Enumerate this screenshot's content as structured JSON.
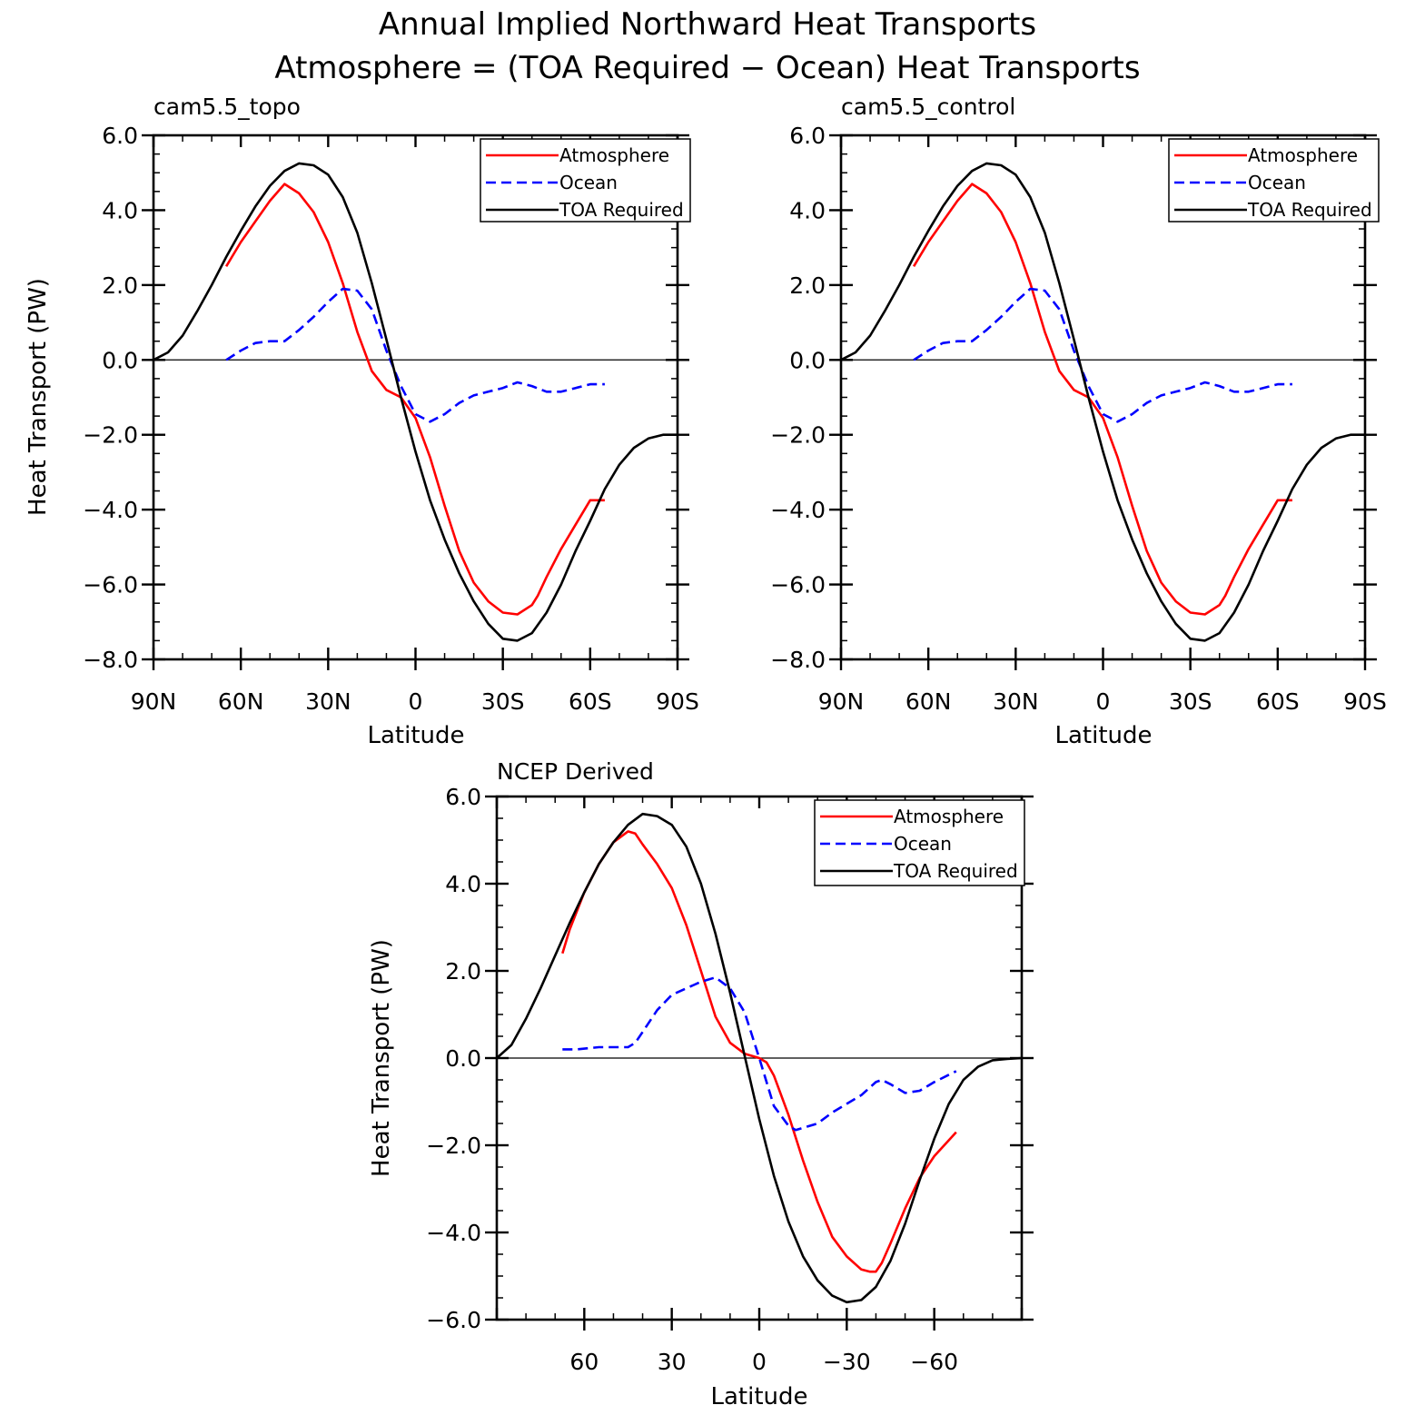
{
  "figure": {
    "title_line1": "Annual Implied Northward Heat Transports",
    "title_line2": "Atmosphere = (TOA Required − Ocean) Heat Transports"
  },
  "colors": {
    "atmosphere": "#ff0000",
    "ocean": "#0000ff",
    "toa": "#000000"
  },
  "chart_data": [
    {
      "type": "line",
      "panel_label": "cam5.5_topo",
      "xlabel": "Latitude",
      "ylabel": "Heat Transport (PW)",
      "xlim": [
        90,
        -90
      ],
      "ylim": [
        -8,
        6
      ],
      "x_ticks": [
        90,
        60,
        30,
        0,
        -30,
        -60,
        -90
      ],
      "x_tick_labels": [
        "90N",
        "60N",
        "30N",
        "0",
        "30S",
        "60S",
        "90S"
      ],
      "y_ticks": [
        -8,
        -6,
        -4,
        -2,
        0,
        2,
        4,
        6
      ],
      "y_tick_labels": [
        "−8.0",
        "−6.0",
        "−4.0",
        "−2.0",
        "0.0",
        "2.0",
        "4.0",
        "6.0"
      ],
      "legend": {
        "placement": "top-right",
        "entries": [
          "Atmosphere",
          "Ocean",
          "TOA Required"
        ]
      },
      "zero_line": true,
      "grid": false,
      "series": [
        {
          "name": "Atmosphere",
          "color": "#ff0000",
          "dash": "solid",
          "x": [
            65,
            60,
            55,
            50,
            45,
            40,
            35,
            30,
            25,
            20,
            15,
            10,
            5,
            0,
            -5,
            -10,
            -15,
            -20,
            -25,
            -30,
            -35,
            -40,
            -42,
            -45,
            -50,
            -55,
            -60,
            -65
          ],
          "y": [
            2.5,
            3.15,
            3.7,
            4.25,
            4.7,
            4.45,
            3.95,
            3.15,
            2.05,
            0.75,
            -0.3,
            -0.8,
            -1.0,
            -1.55,
            -2.6,
            -3.9,
            -5.1,
            -5.95,
            -6.45,
            -6.75,
            -6.8,
            -6.55,
            -6.3,
            -5.8,
            -5.05,
            -4.4,
            -3.75,
            -3.75
          ]
        },
        {
          "name": "Ocean",
          "color": "#0000ff",
          "dash": "dashed",
          "x": [
            65,
            60,
            55,
            50,
            45,
            40,
            35,
            30,
            25,
            20,
            15,
            10,
            5,
            0,
            -5,
            -10,
            -15,
            -20,
            -25,
            -30,
            -35,
            -40,
            -45,
            -50,
            -55,
            -60,
            -65
          ],
          "y": [
            0.0,
            0.25,
            0.45,
            0.5,
            0.5,
            0.8,
            1.15,
            1.55,
            1.9,
            1.85,
            1.35,
            0.25,
            -0.7,
            -1.45,
            -1.65,
            -1.45,
            -1.15,
            -0.95,
            -0.85,
            -0.75,
            -0.6,
            -0.7,
            -0.85,
            -0.85,
            -0.75,
            -0.65,
            -0.65
          ]
        },
        {
          "name": "TOA Required",
          "color": "#000000",
          "dash": "solid",
          "x": [
            90,
            85,
            80,
            75,
            70,
            65,
            60,
            55,
            50,
            45,
            40,
            35,
            30,
            25,
            20,
            15,
            10,
            5,
            0,
            -5,
            -10,
            -15,
            -20,
            -25,
            -30,
            -35,
            -40,
            -45,
            -50,
            -55,
            -60,
            -65,
            -70,
            -75,
            -80,
            -85,
            -90
          ],
          "y": [
            0.0,
            0.2,
            0.65,
            1.3,
            2.0,
            2.75,
            3.45,
            4.1,
            4.65,
            5.05,
            5.25,
            5.2,
            4.95,
            4.35,
            3.4,
            2.05,
            0.55,
            -1.0,
            -2.45,
            -3.75,
            -4.8,
            -5.7,
            -6.45,
            -7.05,
            -7.45,
            -7.5,
            -7.3,
            -6.75,
            -6.0,
            -5.1,
            -4.3,
            -3.45,
            -2.8,
            -2.35,
            -2.1,
            -2.0,
            -2.0
          ]
        }
      ]
    },
    {
      "type": "line",
      "panel_label": "cam5.5_control",
      "xlabel": "Latitude",
      "ylabel": "",
      "xlim": [
        90,
        -90
      ],
      "ylim": [
        -8,
        6
      ],
      "x_ticks": [
        90,
        60,
        30,
        0,
        -30,
        -60,
        -90
      ],
      "x_tick_labels": [
        "90N",
        "60N",
        "30N",
        "0",
        "30S",
        "60S",
        "90S"
      ],
      "y_ticks": [
        -8,
        -6,
        -4,
        -2,
        0,
        2,
        4,
        6
      ],
      "y_tick_labels": [
        "−8.0",
        "−6.0",
        "−4.0",
        "−2.0",
        "0.0",
        "2.0",
        "4.0",
        "6.0"
      ],
      "legend": {
        "placement": "top-right",
        "entries": [
          "Atmosphere",
          "Ocean",
          "TOA Required"
        ]
      },
      "zero_line": true,
      "grid": false,
      "series": [
        {
          "name": "Atmosphere",
          "color": "#ff0000",
          "dash": "solid",
          "x": [
            65,
            60,
            55,
            50,
            45,
            40,
            35,
            30,
            25,
            20,
            15,
            10,
            5,
            0,
            -5,
            -10,
            -15,
            -20,
            -25,
            -30,
            -35,
            -40,
            -42,
            -45,
            -50,
            -55,
            -60,
            -65
          ],
          "y": [
            2.5,
            3.15,
            3.7,
            4.25,
            4.7,
            4.45,
            3.95,
            3.15,
            2.05,
            0.75,
            -0.3,
            -0.8,
            -1.0,
            -1.55,
            -2.6,
            -3.9,
            -5.1,
            -5.95,
            -6.45,
            -6.75,
            -6.8,
            -6.55,
            -6.3,
            -5.8,
            -5.05,
            -4.4,
            -3.75,
            -3.75
          ]
        },
        {
          "name": "Ocean",
          "color": "#0000ff",
          "dash": "dashed",
          "x": [
            65,
            60,
            55,
            50,
            45,
            40,
            35,
            30,
            25,
            20,
            15,
            10,
            5,
            0,
            -5,
            -10,
            -15,
            -20,
            -25,
            -30,
            -35,
            -40,
            -45,
            -50,
            -55,
            -60,
            -65
          ],
          "y": [
            0.0,
            0.25,
            0.45,
            0.5,
            0.5,
            0.8,
            1.15,
            1.55,
            1.9,
            1.85,
            1.35,
            0.25,
            -0.7,
            -1.45,
            -1.65,
            -1.45,
            -1.15,
            -0.95,
            -0.85,
            -0.75,
            -0.6,
            -0.7,
            -0.85,
            -0.85,
            -0.75,
            -0.65,
            -0.65
          ]
        },
        {
          "name": "TOA Required",
          "color": "#000000",
          "dash": "solid",
          "x": [
            90,
            85,
            80,
            75,
            70,
            65,
            60,
            55,
            50,
            45,
            40,
            35,
            30,
            25,
            20,
            15,
            10,
            5,
            0,
            -5,
            -10,
            -15,
            -20,
            -25,
            -30,
            -35,
            -40,
            -45,
            -50,
            -55,
            -60,
            -65,
            -70,
            -75,
            -80,
            -85,
            -90
          ],
          "y": [
            0.0,
            0.2,
            0.65,
            1.3,
            2.0,
            2.75,
            3.45,
            4.1,
            4.65,
            5.05,
            5.25,
            5.2,
            4.95,
            4.35,
            3.4,
            2.05,
            0.55,
            -1.0,
            -2.45,
            -3.75,
            -4.8,
            -5.7,
            -6.45,
            -7.05,
            -7.45,
            -7.5,
            -7.3,
            -6.75,
            -6.0,
            -5.1,
            -4.3,
            -3.45,
            -2.8,
            -2.35,
            -2.1,
            -2.0,
            -2.0
          ]
        }
      ]
    },
    {
      "type": "line",
      "panel_label": "NCEP Derived",
      "xlabel": "Latitude",
      "ylabel": "Heat Transport (PW)",
      "xlim": [
        90,
        -90
      ],
      "ylim": [
        -6,
        6
      ],
      "x_ticks": [
        60,
        30,
        0,
        -30,
        -60
      ],
      "x_tick_labels": [
        "60",
        "30",
        "0",
        "−30",
        "−60"
      ],
      "y_ticks": [
        -6,
        -4,
        -2,
        0,
        2,
        4,
        6
      ],
      "y_tick_labels": [
        "−6.0",
        "−4.0",
        "−2.0",
        "0.0",
        "2.0",
        "4.0",
        "6.0"
      ],
      "legend": {
        "placement": "top-right",
        "entries": [
          "Atmosphere",
          "Ocean",
          "TOA Required"
        ]
      },
      "zero_line": true,
      "grid": false,
      "series": [
        {
          "name": "Atmosphere",
          "color": "#ff0000",
          "dash": "solid",
          "x": [
            67.5,
            65,
            60,
            55,
            50,
            45,
            42.5,
            40,
            35,
            30,
            25,
            20,
            15,
            10,
            5,
            2.5,
            0,
            -2.5,
            -5,
            -10,
            -15,
            -20,
            -25,
            -30,
            -35,
            -38,
            -40,
            -42,
            -45,
            -50,
            -55,
            -60,
            -67.5
          ],
          "y": [
            2.4,
            2.95,
            3.8,
            4.45,
            4.95,
            5.2,
            5.15,
            4.9,
            4.45,
            3.9,
            3.05,
            2.0,
            0.95,
            0.35,
            0.1,
            0.05,
            0.0,
            -0.1,
            -0.4,
            -1.3,
            -2.35,
            -3.3,
            -4.1,
            -4.55,
            -4.85,
            -4.9,
            -4.9,
            -4.7,
            -4.25,
            -3.45,
            -2.75,
            -2.25,
            -1.7
          ]
        },
        {
          "name": "Ocean",
          "color": "#0000ff",
          "dash": "dashed",
          "x": [
            67.5,
            62.5,
            55,
            50,
            45,
            42.5,
            40,
            35,
            30,
            25,
            20,
            15,
            10,
            5,
            0,
            -5,
            -10,
            -12.5,
            -15,
            -20,
            -25,
            -30,
            -35,
            -40,
            -42,
            -45,
            -50,
            -55,
            -60,
            -67.5
          ],
          "y": [
            0.2,
            0.2,
            0.25,
            0.25,
            0.25,
            0.35,
            0.6,
            1.1,
            1.45,
            1.6,
            1.75,
            1.85,
            1.6,
            1.05,
            0.0,
            -1.1,
            -1.55,
            -1.65,
            -1.6,
            -1.5,
            -1.25,
            -1.05,
            -0.85,
            -0.55,
            -0.5,
            -0.6,
            -0.8,
            -0.75,
            -0.55,
            -0.3
          ]
        },
        {
          "name": "TOA Required",
          "color": "#000000",
          "dash": "solid",
          "x": [
            90,
            85,
            80,
            75,
            70,
            65,
            60,
            55,
            50,
            45,
            40,
            35,
            30,
            25,
            20,
            15,
            10,
            5,
            0,
            -5,
            -10,
            -15,
            -20,
            -25,
            -30,
            -35,
            -40,
            -45,
            -50,
            -55,
            -60,
            -65,
            -70,
            -75,
            -80,
            -85,
            -90
          ],
          "y": [
            0.0,
            0.3,
            0.9,
            1.6,
            2.35,
            3.1,
            3.8,
            4.45,
            4.95,
            5.35,
            5.6,
            5.55,
            5.35,
            4.85,
            4.0,
            2.85,
            1.5,
            0.05,
            -1.4,
            -2.7,
            -3.75,
            -4.55,
            -5.1,
            -5.45,
            -5.6,
            -5.55,
            -5.25,
            -4.65,
            -3.8,
            -2.8,
            -1.85,
            -1.05,
            -0.5,
            -0.2,
            -0.05,
            -0.02,
            0.0
          ]
        }
      ]
    }
  ]
}
